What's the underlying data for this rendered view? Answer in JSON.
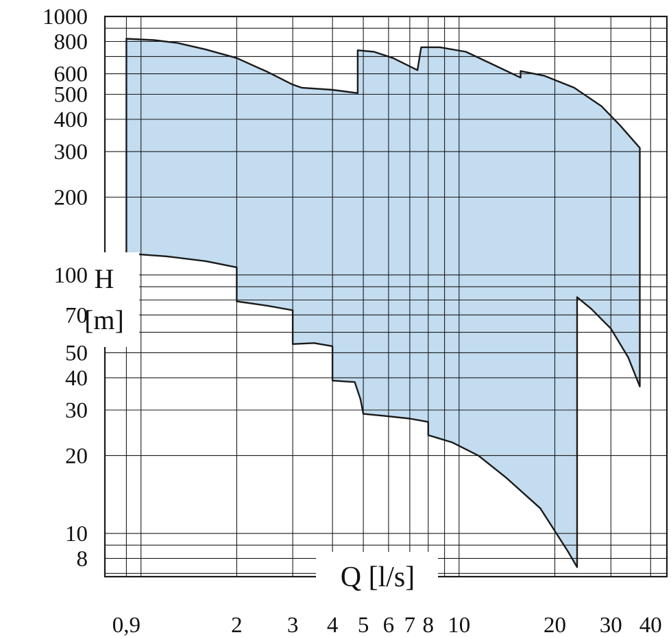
{
  "chart_data": {
    "type": "area",
    "xscale": "log",
    "yscale": "log",
    "xlim": [
      0.77,
      45
    ],
    "ylim": [
      6.8,
      1000
    ],
    "grid": true,
    "xlabel": "Q [l/s]",
    "ylabel_line1": "H",
    "ylabel_line2": "[m]",
    "x_tick_labels": [
      {
        "v": 0.9,
        "t": "0,9"
      },
      {
        "v": 2,
        "t": "2"
      },
      {
        "v": 3,
        "t": "3"
      },
      {
        "v": 4,
        "t": "4"
      },
      {
        "v": 5,
        "t": "5"
      },
      {
        "v": 6,
        "t": "6"
      },
      {
        "v": 7,
        "t": "7"
      },
      {
        "v": 8,
        "t": "8"
      },
      {
        "v": 10,
        "t": "10"
      },
      {
        "v": 20,
        "t": "20"
      },
      {
        "v": 30,
        "t": "30"
      },
      {
        "v": 40,
        "t": "40"
      }
    ],
    "y_tick_labels": [
      {
        "v": 1000,
        "t": "1000"
      },
      {
        "v": 800,
        "t": "800"
      },
      {
        "v": 600,
        "t": "600"
      },
      {
        "v": 500,
        "t": "500"
      },
      {
        "v": 400,
        "t": "400"
      },
      {
        "v": 300,
        "t": "300"
      },
      {
        "v": 200,
        "t": "200"
      },
      {
        "v": 100,
        "t": "100"
      },
      {
        "v": 70,
        "t": "70"
      },
      {
        "v": 50,
        "t": "50"
      },
      {
        "v": 40,
        "t": "40"
      },
      {
        "v": 30,
        "t": "30"
      },
      {
        "v": 20,
        "t": "20"
      },
      {
        "v": 10,
        "t": "10"
      },
      {
        "v": 8,
        "t": "8"
      }
    ],
    "x_gridlines": [
      0.9,
      1,
      2,
      3,
      4,
      5,
      6,
      7,
      8,
      9,
      10,
      20,
      30,
      40
    ],
    "y_gridlines": [
      7,
      8,
      9,
      10,
      20,
      30,
      40,
      50,
      60,
      70,
      80,
      90,
      100,
      200,
      300,
      400,
      500,
      600,
      700,
      800,
      900
    ],
    "operating_range": {
      "name": "",
      "fill_color": "#c3dcef",
      "stroke_color": "#1a1a1a",
      "polygon": [
        [
          0.9,
          820
        ],
        [
          1.1,
          810
        ],
        [
          1.3,
          790
        ],
        [
          1.6,
          745
        ],
        [
          2.0,
          690
        ],
        [
          2.5,
          610
        ],
        [
          3.0,
          545
        ],
        [
          3.2,
          530
        ],
        [
          4.0,
          520
        ],
        [
          4.8,
          505
        ],
        [
          4.8,
          740
        ],
        [
          5.4,
          730
        ],
        [
          6.2,
          690
        ],
        [
          7.4,
          620
        ],
        [
          7.6,
          760
        ],
        [
          8.7,
          760
        ],
        [
          10.5,
          730
        ],
        [
          12.5,
          660
        ],
        [
          15.6,
          580
        ],
        [
          15.6,
          615
        ],
        [
          18.5,
          590
        ],
        [
          23.0,
          530
        ],
        [
          28.0,
          450
        ],
        [
          32.0,
          380
        ],
        [
          37.0,
          310
        ],
        [
          37.0,
          37
        ],
        [
          34.0,
          48
        ],
        [
          30.0,
          62
        ],
        [
          26.0,
          74
        ],
        [
          23.5,
          82
        ],
        [
          23.5,
          7.4
        ],
        [
          22.0,
          8.5
        ],
        [
          18.0,
          12.5
        ],
        [
          14.0,
          16.5
        ],
        [
          11.5,
          20
        ],
        [
          9.5,
          22.5
        ],
        [
          8.0,
          24
        ],
        [
          8.0,
          27
        ],
        [
          7.0,
          27.8
        ],
        [
          5.8,
          28.5
        ],
        [
          5.0,
          29
        ],
        [
          4.9,
          33
        ],
        [
          4.7,
          38.5
        ],
        [
          4.0,
          39
        ],
        [
          4.0,
          53
        ],
        [
          3.5,
          54.5
        ],
        [
          3.0,
          54
        ],
        [
          3.0,
          73
        ],
        [
          2.5,
          76
        ],
        [
          2.0,
          79
        ],
        [
          2.0,
          107
        ],
        [
          1.6,
          113
        ],
        [
          1.2,
          118
        ],
        [
          0.9,
          121
        ]
      ]
    }
  }
}
